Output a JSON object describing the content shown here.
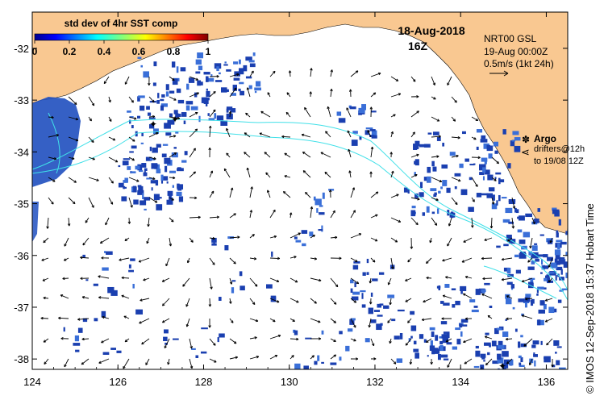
{
  "colorbar": {
    "title": "std dev of 4hr SST comp",
    "ticks": [
      "0",
      "0.2",
      "0.4",
      "0.6",
      "0.8",
      "1"
    ],
    "range": [
      0,
      1
    ]
  },
  "date": {
    "line1": "18-Aug-2018",
    "line2": "16Z"
  },
  "info": {
    "line1": "NRT00 GSL",
    "line2": "19-Aug 00:00Z",
    "line3": "0.5m/s (1kt 24h)"
  },
  "legend": {
    "argo": "Argo",
    "drifters1": "drifters@12h",
    "drifters2": "to 19/08 12Z"
  },
  "axes": {
    "lon_ticks": [
      "124",
      "126",
      "128",
      "130",
      "132",
      "134",
      "136"
    ],
    "lat_ticks": [
      "-32",
      "-33",
      "-34",
      "-35",
      "-36",
      "-37",
      "-38"
    ],
    "lon_range": [
      124,
      136.5
    ],
    "lat_range": [
      -38.2,
      -31.3
    ]
  },
  "credit": "© IMOS 12-Sep-2018 15:37 Hobart Time",
  "colors": {
    "land": "#f9c891",
    "ocean": "#ffffff",
    "contour": "#40e0e8",
    "argo": "#ff00ff",
    "data_blue": "#1a3fb0"
  }
}
